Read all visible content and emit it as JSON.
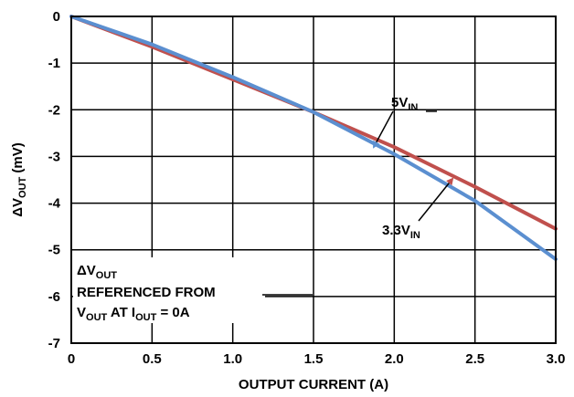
{
  "chart_data": {
    "type": "line",
    "xlabel": "OUTPUT CURRENT (A)",
    "ylabel": {
      "delta": "ΔV",
      "sub": "OUT",
      "tail": " (mV)"
    },
    "xlim": [
      0,
      3.0
    ],
    "ylim": [
      -7,
      0
    ],
    "x_ticks": [
      "0",
      "0.5",
      "1.0",
      "1.5",
      "2.0",
      "2.5",
      "3.0"
    ],
    "y_ticks": [
      "0",
      "-1",
      "-2",
      "-3",
      "-4",
      "-5",
      "-6",
      "-7"
    ],
    "grid": true,
    "series": [
      {
        "name": {
          "main": "5V",
          "sub": "IN"
        },
        "color": "#5b8fd0",
        "x": [
          0,
          0.5,
          1.0,
          1.5,
          2.0,
          2.5,
          3.0
        ],
        "y": [
          0,
          -0.6,
          -1.3,
          -2.05,
          -2.95,
          -3.95,
          -5.2
        ]
      },
      {
        "name": {
          "main": "3.3V",
          "sub": "IN"
        },
        "color": "#c0504d",
        "x": [
          0,
          0.5,
          1.0,
          1.5,
          2.0,
          2.5,
          3.0
        ],
        "y": [
          0,
          -0.65,
          -1.35,
          -2.05,
          -2.8,
          -3.65,
          -4.55
        ]
      }
    ],
    "annotation": {
      "line1": {
        "delta": "ΔV",
        "sub": "OUT"
      },
      "line2": "REFERENCED FROM",
      "line3": {
        "v": "V",
        "vsub": "OUT",
        "mid": " AT I",
        "isub": "OUT",
        "tail": " = 0A"
      }
    }
  }
}
